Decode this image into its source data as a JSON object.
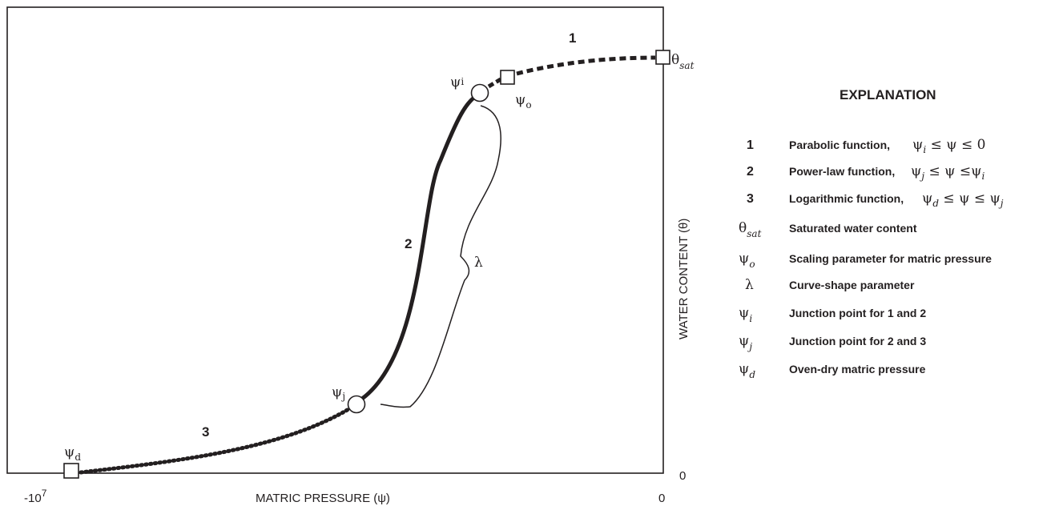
{
  "axes": {
    "x_label": "MATRIC PRESSURE (ψ)",
    "y_label": "WATER CONTENT (θ)",
    "x_min_label": "-10",
    "x_min_exp": "7",
    "x_zero_label": "0",
    "y_zero_label": "0"
  },
  "segments": {
    "seg1_label": "1",
    "seg2_label": "2",
    "seg3_label": "3"
  },
  "points": {
    "theta_sat": {
      "main": "θ",
      "sub": "sat"
    },
    "psi_o": {
      "main": "ψ",
      "sub": "o"
    },
    "psi_i": {
      "main": "ψ",
      "sub": "i"
    },
    "psi_j": {
      "main": "ψ",
      "sub": "j"
    },
    "psi_d": {
      "main": "ψ",
      "sub": "d"
    },
    "lambda": "λ"
  },
  "legend": {
    "title": "EXPLANATION",
    "rows": [
      {
        "key": "1",
        "desc": "Parabolic function,",
        "formula": "ψi ≤ ψ ≤ 0",
        "f": [
          "ψ",
          "i",
          "≤ ψ ≤ 0",
          ""
        ]
      },
      {
        "key": "2",
        "desc": "Power-law function,",
        "formula": "ψj ≤ ψ ≤ψi",
        "f": [
          "ψ",
          "j",
          "≤ ψ ≤ψ",
          "i"
        ]
      },
      {
        "key": "3",
        "desc": "Logarithmic function,",
        "formula": "ψd ≤ ψ ≤ ψj",
        "f": [
          "ψ",
          "d",
          "≤ ψ ≤ ψ",
          "j"
        ]
      },
      {
        "key": "θ",
        "key_sub": "sat",
        "desc": "Saturated water content"
      },
      {
        "key": "ψ",
        "key_sub": "o",
        "desc": "Scaling parameter for matric pressure"
      },
      {
        "key": "λ",
        "key_sub": "",
        "desc": "Curve-shape parameter"
      },
      {
        "key": "ψ",
        "key_sub": "i",
        "desc": "Junction point for 1 and 2"
      },
      {
        "key": "ψ",
        "key_sub": "j",
        "desc": "Junction point for 2 and 3"
      },
      {
        "key": "ψ",
        "key_sub": "d",
        "desc": "Oven-dry matric pressure"
      }
    ]
  }
}
